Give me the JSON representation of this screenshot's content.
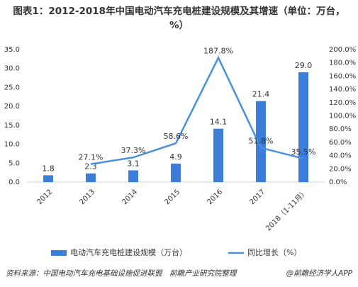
{
  "chart_data": {
    "type": "bar_line",
    "title": "图表1：2012-2018年中国电动汽车充电桩建设规模及其增速（单位：万台，%）",
    "categories": [
      "2012",
      "2013",
      "2014",
      "2015",
      "2016",
      "2017",
      "2018（1-11月）"
    ],
    "series": [
      {
        "name": "电动汽车充电桩建设规模（万台）",
        "type": "bar",
        "color": "#3b7dd8",
        "values": [
          1.8,
          2.3,
          3.1,
          4.9,
          14.1,
          21.4,
          29.0
        ],
        "value_labels": [
          "1.8",
          "2.3",
          "3.1",
          "4.9",
          "14.1",
          "21.4",
          "29.0"
        ]
      },
      {
        "name": "同比增长（%）",
        "type": "line",
        "axis": "y2",
        "color": "#4b90dc",
        "values": [
          null,
          27.1,
          37.3,
          58.6,
          187.8,
          51.8,
          35.5
        ],
        "value_labels": [
          null,
          "27.1%",
          "37.3%",
          "58.6%",
          "187.8%",
          "51.8%",
          "35.5%"
        ]
      }
    ],
    "ylim": [
      0,
      35
    ],
    "yticks": [
      {
        "value": 0,
        "label": "0.0"
      },
      {
        "value": 5,
        "label": "5.0"
      },
      {
        "value": 10,
        "label": "10.0"
      },
      {
        "value": 15,
        "label": "15.0"
      },
      {
        "value": 20,
        "label": "20.0"
      },
      {
        "value": 25,
        "label": "25.0"
      },
      {
        "value": 30,
        "label": "30.0"
      },
      {
        "value": 35,
        "label": "35.0"
      }
    ],
    "y2lim": [
      0,
      200
    ],
    "y2ticks": [
      {
        "value": 0,
        "label": "0.0%"
      },
      {
        "value": 20,
        "label": "20.0%"
      },
      {
        "value": 40,
        "label": "40.0%"
      },
      {
        "value": 60,
        "label": "60.0%"
      },
      {
        "value": 80,
        "label": "80.0%"
      },
      {
        "value": 100,
        "label": "100.0%"
      },
      {
        "value": 120,
        "label": "120.0%"
      },
      {
        "value": 140,
        "label": "140.0%"
      },
      {
        "value": 160,
        "label": "160.0%"
      },
      {
        "value": 180,
        "label": "180.0%"
      },
      {
        "value": 200,
        "label": "200.0%"
      }
    ],
    "source": "资料来源：中国电动汽车充电基础设施促进联盟　前瞻产业研究院整理",
    "credit": "@前瞻经济学人APP"
  }
}
